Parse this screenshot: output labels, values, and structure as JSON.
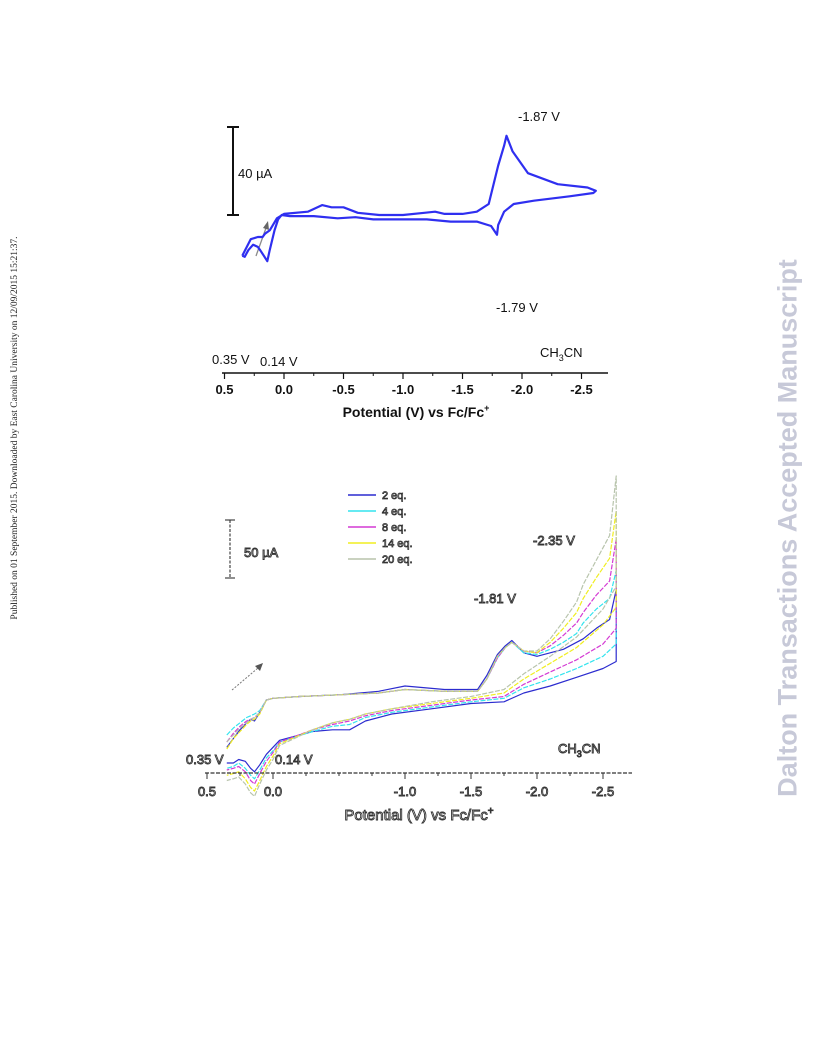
{
  "side_text": {
    "published": "Published on 01 September 2015. Downloaded by East Carolina University on 12/09/2015 15:21:37.",
    "watermark": "Dalton Transactions Accepted Manuscript"
  },
  "colors": {
    "cv": "#2f2ff0",
    "axis": "#111111",
    "arrow": "#8a8a8a"
  },
  "chart_data": [
    {
      "type": "line",
      "xlabel": "Potential (V) vs Fc/Fc",
      "xlabel_sup": "+",
      "xlim": [
        0.5,
        -2.6
      ],
      "xticks": [
        "0.5",
        "0.0",
        "-0.5",
        "-1.0",
        "-1.5",
        "-2.0",
        "-2.5"
      ],
      "xtick_values": [
        0.5,
        0.0,
        -0.5,
        -1.0,
        -1.5,
        -2.0,
        -2.5
      ],
      "scale_bar": "40 µA",
      "solvent": "CH3CN",
      "solvent_parts": [
        "CH",
        "3",
        "CN"
      ],
      "annotations": [
        "-1.87 V",
        "-1.79 V",
        "0.35 V",
        "0.14 V"
      ],
      "series": [
        {
          "x": [
            0.35,
            0.28,
            0.22,
            0.18,
            0.16,
            0.12,
            0.06,
            0.0,
            -0.2,
            -0.32,
            -0.4,
            -0.5,
            -0.62,
            -0.8,
            -1.0,
            -1.18,
            -1.27,
            -1.35,
            -1.5,
            -1.62,
            -1.72,
            -1.8,
            -1.85,
            -1.87,
            -1.92,
            -2.05,
            -2.3,
            -2.55,
            -2.62,
            -2.6,
            -2.4,
            -2.1,
            -1.93,
            -1.85,
            -1.8,
            -1.79,
            -1.74,
            -1.62,
            -1.4,
            -1.2,
            -1.05,
            -0.75,
            -0.6,
            -0.45,
            -0.25,
            -0.05,
            0.02,
            0.05,
            0.08,
            0.12,
            0.14,
            0.17,
            0.2,
            0.22,
            0.26,
            0.3,
            0.33,
            0.35
          ],
          "y": [
            -37,
            -22,
            -20,
            -20,
            -17,
            -14,
            -3,
            1,
            3,
            9,
            7,
            7,
            2,
            0,
            0,
            2,
            3,
            1,
            1,
            3,
            10,
            45,
            63,
            72,
            58,
            38,
            28,
            25,
            22,
            20,
            17,
            13,
            10,
            3,
            -9,
            -18,
            -10,
            -6,
            -6,
            -4,
            -4,
            -4,
            -2,
            -3,
            -1,
            -1,
            0,
            -4,
            -14,
            -32,
            -42,
            -37,
            -32,
            -29,
            -27,
            -32,
            -38,
            -37
          ]
        }
      ]
    },
    {
      "type": "line",
      "xlabel": "Potential (V) vs Fc/Fc",
      "xlabel_sup": "+",
      "xlim": [
        0.5,
        -2.6
      ],
      "xticks": [
        "0.5",
        "0.0",
        "-1.0",
        "-1.5",
        "-2.0",
        "-2.5"
      ],
      "xtick_values": [
        0.5,
        0.0,
        -1.0,
        -1.5,
        -2.0,
        -2.5
      ],
      "scale_bar": "50 µA",
      "solvent": "CH3CN",
      "solvent_parts": [
        "CH",
        "3",
        "CN"
      ],
      "annotations": [
        "-2.35 V",
        "-1.81 V",
        "0.35 V",
        "0.14 V"
      ],
      "legend": [
        "2 eq.",
        "4 eq.",
        "8 eq.",
        "14 eq.",
        "20 eq."
      ],
      "legend_position": "top-center",
      "series_colors": [
        "#2c2ccf",
        "#33e4ee",
        "#d43ad4",
        "#f0ee20",
        "#b8c4ac"
      ],
      "x": [
        0.35,
        0.3,
        0.25,
        0.2,
        0.17,
        0.14,
        0.1,
        0.05,
        0.0,
        -0.2,
        -0.5,
        -0.8,
        -1.0,
        -1.3,
        -1.55,
        -1.62,
        -1.7,
        -1.76,
        -1.81,
        -1.9,
        -2.0,
        -2.1,
        -2.2,
        -2.3,
        -2.35,
        -2.45,
        -2.55,
        -2.6,
        -2.6,
        -2.5,
        -2.3,
        -2.1,
        -1.9,
        -1.75,
        -1.5,
        -1.2,
        -0.9,
        -0.7,
        -0.58,
        -0.45,
        -0.3,
        -0.05,
        0.0,
        0.05,
        0.1,
        0.14,
        0.17,
        0.21,
        0.26,
        0.3,
        0.35
      ],
      "series": [
        {
          "name": "2 eq.",
          "y": [
            -43,
            -38,
            -33,
            -29,
            -27,
            -28,
            -23,
            -16,
            -15,
            -14,
            -13,
            -11,
            -8,
            -10,
            -10,
            -2,
            10,
            15,
            18,
            11,
            9,
            11,
            13,
            17,
            19,
            25,
            30,
            47,
            6,
            2,
            -3,
            -8,
            -12,
            -17,
            -18,
            -21,
            -24,
            -28,
            -33,
            -33,
            -34,
            -39,
            -43,
            -47,
            -53,
            -57,
            -55,
            -51,
            -50,
            -52,
            -52
          ]
        },
        {
          "name": "4 eq.",
          "y": [
            -36,
            -32,
            -29,
            -26,
            -25,
            -24,
            -22,
            -16,
            -15,
            -14,
            -13,
            -12,
            -10,
            -11,
            -11,
            -4,
            8,
            14,
            17,
            11,
            10,
            13,
            17,
            22,
            28,
            36,
            42,
            58,
            16,
            9,
            2,
            -4,
            -9,
            -15,
            -17,
            -20,
            -23,
            -26,
            -30,
            -31,
            -34,
            -40,
            -45,
            -49,
            -56,
            -61,
            -59,
            -55,
            -52,
            -54,
            -55
          ]
        },
        {
          "name": "8 eq.",
          "y": [
            -40,
            -35,
            -31,
            -28,
            -27,
            -26,
            -23,
            -16,
            -15,
            -14,
            -13,
            -12,
            -10,
            -11,
            -11,
            -4,
            8,
            14,
            17,
            12,
            11,
            15,
            21,
            28,
            34,
            44,
            52,
            76,
            25,
            16,
            7,
            0,
            -7,
            -14,
            -16,
            -19,
            -22,
            -25,
            -28,
            -30,
            -33,
            -40,
            -46,
            -51,
            -58,
            -64,
            -62,
            -57,
            -54,
            -55,
            -56
          ]
        },
        {
          "name": "14 eq.",
          "y": [
            -44,
            -38,
            -34,
            -30,
            -28,
            -27,
            -24,
            -16,
            -15,
            -14,
            -13,
            -12,
            -10,
            -11,
            -11,
            -4,
            9,
            14,
            17,
            12,
            11,
            17,
            25,
            34,
            42,
            54,
            65,
            92,
            37,
            27,
            14,
            5,
            -4,
            -12,
            -15,
            -18,
            -21,
            -24,
            -27,
            -29,
            -33,
            -41,
            -48,
            -54,
            -62,
            -68,
            -66,
            -61,
            -57,
            -58,
            -59
          ]
        },
        {
          "name": "20 eq.",
          "y": [
            -40,
            -36,
            -32,
            -29,
            -27,
            -26,
            -23,
            -16,
            -15,
            -14,
            -13,
            -12,
            -10,
            -11,
            -11,
            -4,
            9,
            14,
            17,
            12,
            12,
            19,
            29,
            40,
            50,
            64,
            78,
            112,
            49,
            36,
            20,
            9,
            -1,
            -10,
            -14,
            -17,
            -21,
            -24,
            -27,
            -29,
            -33,
            -42,
            -50,
            -56,
            -64,
            -71,
            -69,
            -64,
            -60,
            -61,
            -62
          ]
        }
      ]
    }
  ]
}
